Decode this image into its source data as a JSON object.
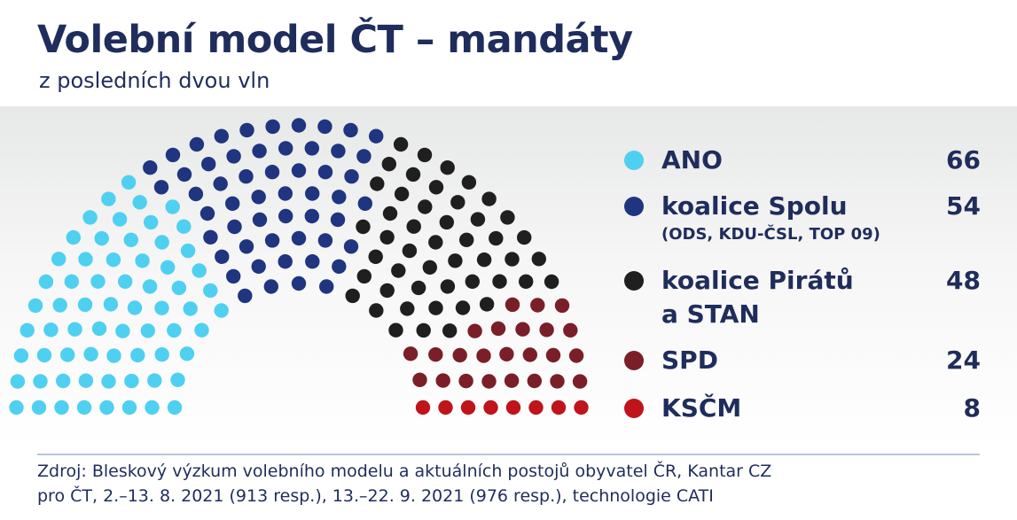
{
  "header": {
    "title": "Volební model ČT – mandáty",
    "subtitle": "z posledních dvou vln"
  },
  "chart_data": {
    "type": "parliament",
    "total_seats": 200,
    "parties": [
      {
        "name": "ANO",
        "seats": 66,
        "color": "#4fd0f0"
      },
      {
        "name": "koalice Spolu",
        "sub": "(ODS, KDU-ČSL, TOP 09)",
        "seats": 54,
        "color": "#1f3580"
      },
      {
        "name": "koalice Pirátů",
        "name2": "a STAN",
        "seats": 48,
        "color": "#1f1f1f"
      },
      {
        "name": "SPD",
        "seats": 24,
        "color": "#7a1f28"
      },
      {
        "name": "KSČM",
        "seats": 8,
        "color": "#c0141c"
      }
    ]
  },
  "source": {
    "line1": "Zdroj: Bleskový výzkum volebního modelu a aktuálních postojů obyvatel ČR, Kantar CZ",
    "line2": "pro ČT, 2.–13. 8. 2021 (913 resp.), 13.–22. 9. 2021 (976 resp.), technologie CATI"
  }
}
